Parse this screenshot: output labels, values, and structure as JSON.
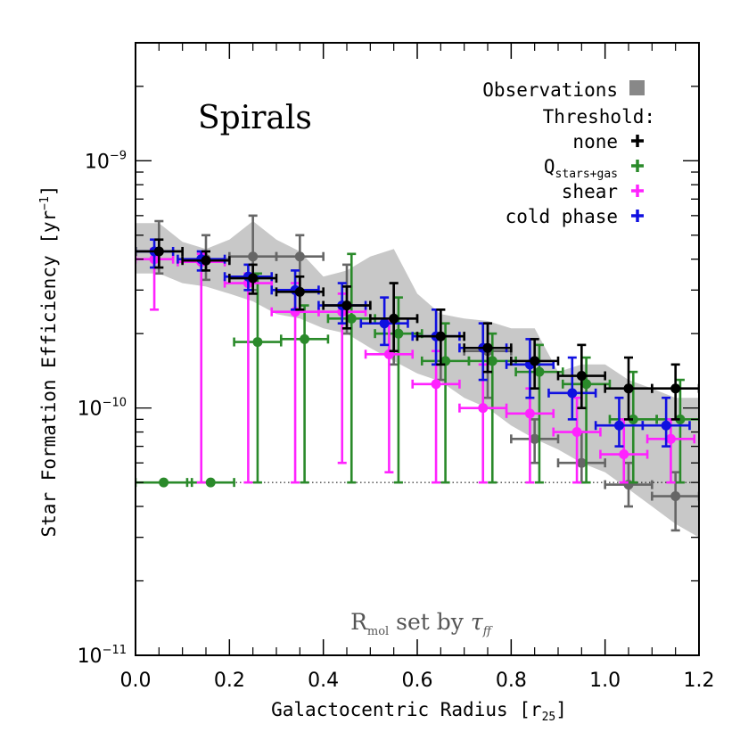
{
  "chart_data": {
    "type": "scatter",
    "title": "Spirals",
    "xlabel": "Galactocentric Radius [r25]",
    "xlabel_parts": {
      "main": "Galactocentric Radius [r",
      "sub": "25",
      "end": "]"
    },
    "ylabel": "Star Formation Efficiency [yr^-1]",
    "ylabel_parts": {
      "main": "Star Formation Efficiency [yr",
      "sup": "−1",
      "end": "]"
    },
    "x_scale": "linear",
    "y_scale": "log",
    "xlim": [
      0.0,
      1.2
    ],
    "ylim": [
      1e-11,
      3e-09
    ],
    "x_ticks": [
      0.0,
      0.2,
      0.4,
      0.6,
      0.8,
      1.0,
      1.2
    ],
    "x_tick_labels": [
      "0.0",
      "0.2",
      "0.4",
      "0.6",
      "0.8",
      "1.0",
      "1.2"
    ],
    "y_tick_labels": [
      {
        "value": 1e-09,
        "base": "10",
        "exp": "−9"
      },
      {
        "value": 1e-10,
        "base": "10",
        "exp": "−10"
      },
      {
        "value": 1e-11,
        "base": "10",
        "exp": "−11"
      }
    ],
    "annotation": {
      "R": "R",
      "sub": "mol",
      "rest": " set by ",
      "tau": "τ",
      "tau_sub": "ff"
    },
    "threshold_line": {
      "y": 5e-11,
      "x_range": [
        0.0,
        1.2
      ],
      "style": "dotted"
    },
    "legend": {
      "placement": "top-right",
      "observations_label": "Observations",
      "threshold_heading": "Threshold:",
      "entries": [
        {
          "label": "none",
          "color": "#000000"
        },
        {
          "label": "Q",
          "label_sub": "stars+gas",
          "color": "#2a8a2a"
        },
        {
          "label": "shear",
          "color": "#ff22ff"
        },
        {
          "label": "cold phase",
          "color": "#1010e0"
        }
      ]
    },
    "observations_band": {
      "color": "#c8c8c8",
      "x": [
        0.0,
        0.05,
        0.1,
        0.15,
        0.2,
        0.25,
        0.3,
        0.35,
        0.4,
        0.45,
        0.5,
        0.55,
        0.6,
        0.65,
        0.7,
        0.75,
        0.8,
        0.85,
        0.9,
        0.95,
        1.0,
        1.05,
        1.1,
        1.15,
        1.2
      ],
      "upper": [
        5.6e-10,
        5.6e-10,
        4.7e-10,
        4.4e-10,
        4.8e-10,
        5.7e-10,
        4.8e-10,
        4.3e-10,
        3.4e-10,
        3.6e-10,
        4.1e-10,
        4.4e-10,
        2.9e-10,
        2.4e-10,
        2.3e-10,
        2.25e-10,
        2.1e-10,
        2.1e-10,
        1.4e-10,
        1.5e-10,
        1.5e-10,
        1.3e-10,
        1.2e-10,
        1.1e-10,
        1.1e-10
      ],
      "lower": [
        3.5e-10,
        3.5e-10,
        3.2e-10,
        3.1e-10,
        2.9e-10,
        2.7e-10,
        2.4e-10,
        2.3e-10,
        2.1e-10,
        2e-10,
        1.75e-10,
        1.55e-10,
        1.38e-10,
        1.28e-10,
        1.1e-10,
        1e-10,
        8.5e-11,
        7.5e-11,
        6.8e-11,
        6e-11,
        5.5e-11,
        4.7e-11,
        4e-11,
        3.4e-11,
        3e-11
      ]
    },
    "series": [
      {
        "name": "Observations",
        "color": "#666666",
        "points": [
          {
            "x": 0.05,
            "y": 4.3e-10,
            "xerr": 0.05,
            "ylo": 3.5e-10,
            "yhi": 5.7e-10
          },
          {
            "x": 0.15,
            "y": 4e-10,
            "xerr": 0.05,
            "ylo": 3.3e-10,
            "yhi": 5e-10
          },
          {
            "x": 0.25,
            "y": 4.1e-10,
            "xerr": 0.05,
            "ylo": 3e-10,
            "yhi": 6e-10
          },
          {
            "x": 0.35,
            "y": 4.1e-10,
            "xerr": 0.05,
            "ylo": 3e-10,
            "yhi": 5e-10
          },
          {
            "x": 0.45,
            "y": 2.6e-10,
            "xerr": 0.05,
            "ylo": 2e-10,
            "yhi": 3.8e-10
          },
          {
            "x": 0.55,
            "y": 2.3e-10,
            "xerr": 0.05,
            "ylo": 1.5e-10,
            "yhi": 3.2e-10
          },
          {
            "x": 0.65,
            "y": 1.95e-10,
            "xerr": 0.05,
            "ylo": 1.3e-10,
            "yhi": 2.5e-10
          },
          {
            "x": 0.75,
            "y": 1.7e-10,
            "xerr": 0.05,
            "ylo": 1.1e-10,
            "yhi": 2.2e-10
          },
          {
            "x": 0.85,
            "y": 7.5e-11,
            "xerr": 0.05,
            "ylo": 6e-11,
            "yhi": 9e-11
          },
          {
            "x": 0.95,
            "y": 6e-11,
            "xerr": 0.05,
            "ylo": 5e-11,
            "yhi": 8e-11
          },
          {
            "x": 1.05,
            "y": 4.9e-11,
            "xerr": 0.05,
            "ylo": 4e-11,
            "yhi": 6e-11
          },
          {
            "x": 1.15,
            "y": 4.4e-11,
            "xerr": 0.05,
            "ylo": 3.2e-11,
            "yhi": 5.5e-11
          }
        ]
      },
      {
        "name": "Q_stars+gas",
        "color": "#2a8a2a",
        "points": [
          {
            "x": 0.06,
            "y": 5e-11,
            "xerr": 0.06,
            "ylo": 5e-11,
            "yhi": 5e-11
          },
          {
            "x": 0.16,
            "y": 5e-11,
            "xerr": 0.05,
            "ylo": 5e-11,
            "yhi": 5e-11
          },
          {
            "x": 0.26,
            "y": 1.85e-10,
            "xerr": 0.05,
            "ylo": 5e-11,
            "yhi": 3.5e-10
          },
          {
            "x": 0.36,
            "y": 1.9e-10,
            "xerr": 0.05,
            "ylo": 5e-11,
            "yhi": 2.6e-10
          },
          {
            "x": 0.46,
            "y": 2.3e-10,
            "xerr": 0.05,
            "ylo": 5e-11,
            "yhi": 4.2e-10
          },
          {
            "x": 0.56,
            "y": 2e-10,
            "xerr": 0.05,
            "ylo": 5e-11,
            "yhi": 2.8e-10
          },
          {
            "x": 0.66,
            "y": 1.55e-10,
            "xerr": 0.05,
            "ylo": 5e-11,
            "yhi": 2.2e-10
          },
          {
            "x": 0.76,
            "y": 1.55e-10,
            "xerr": 0.05,
            "ylo": 5e-11,
            "yhi": 2e-10
          },
          {
            "x": 0.86,
            "y": 1.4e-10,
            "xerr": 0.05,
            "ylo": 5e-11,
            "yhi": 1.8e-10
          },
          {
            "x": 0.96,
            "y": 1.25e-10,
            "xerr": 0.05,
            "ylo": 5e-11,
            "yhi": 1.6e-10
          },
          {
            "x": 1.06,
            "y": 9e-11,
            "xerr": 0.05,
            "ylo": 5e-11,
            "yhi": 1.4e-10
          },
          {
            "x": 1.16,
            "y": 9e-11,
            "xerr": 0.05,
            "ylo": 5e-11,
            "yhi": 1.3e-10
          }
        ]
      },
      {
        "name": "shear",
        "color": "#ff22ff",
        "points": [
          {
            "x": 0.04,
            "y": 4e-10,
            "xerr": 0.04,
            "ylo": 2.5e-10,
            "yhi": 4.4e-10
          },
          {
            "x": 0.14,
            "y": 3.9e-10,
            "xerr": 0.05,
            "ylo": 5e-11,
            "yhi": 4.2e-10
          },
          {
            "x": 0.24,
            "y": 3.2e-10,
            "xerr": 0.05,
            "ylo": 5e-11,
            "yhi": 3.5e-10
          },
          {
            "x": 0.34,
            "y": 2.45e-10,
            "xerr": 0.05,
            "ylo": 5e-11,
            "yhi": 3.2e-10
          },
          {
            "x": 0.44,
            "y": 2.45e-10,
            "xerr": 0.05,
            "ylo": 6e-11,
            "yhi": 2.9e-10
          },
          {
            "x": 0.54,
            "y": 1.65e-10,
            "xerr": 0.05,
            "ylo": 5.5e-11,
            "yhi": 2.3e-10
          },
          {
            "x": 0.64,
            "y": 1.25e-10,
            "xerr": 0.05,
            "ylo": 5e-11,
            "yhi": 1.7e-10
          },
          {
            "x": 0.74,
            "y": 1e-10,
            "xerr": 0.05,
            "ylo": 5e-11,
            "yhi": 1.5e-10
          },
          {
            "x": 0.84,
            "y": 9.5e-11,
            "xerr": 0.05,
            "ylo": 5e-11,
            "yhi": 1.2e-10
          },
          {
            "x": 0.94,
            "y": 8e-11,
            "xerr": 0.05,
            "ylo": 5e-11,
            "yhi": 1.1e-10
          },
          {
            "x": 1.04,
            "y": 6.5e-11,
            "xerr": 0.05,
            "ylo": 5e-11,
            "yhi": 9e-11
          },
          {
            "x": 1.14,
            "y": 7.5e-11,
            "xerr": 0.05,
            "ylo": 5e-11,
            "yhi": 9e-11
          }
        ]
      },
      {
        "name": "cold phase",
        "color": "#1010e0",
        "points": [
          {
            "x": 0.04,
            "y": 4.3e-10,
            "xerr": 0.04,
            "ylo": 3.7e-10,
            "yhi": 4.8e-10
          },
          {
            "x": 0.14,
            "y": 4e-10,
            "xerr": 0.05,
            "ylo": 3.6e-10,
            "yhi": 4.3e-10
          },
          {
            "x": 0.24,
            "y": 3.4e-10,
            "xerr": 0.05,
            "ylo": 3e-10,
            "yhi": 3.8e-10
          },
          {
            "x": 0.34,
            "y": 3e-10,
            "xerr": 0.05,
            "ylo": 2.5e-10,
            "yhi": 3.6e-10
          },
          {
            "x": 0.44,
            "y": 2.6e-10,
            "xerr": 0.05,
            "ylo": 2.2e-10,
            "yhi": 3.2e-10
          },
          {
            "x": 0.53,
            "y": 2.2e-10,
            "xerr": 0.05,
            "ylo": 1.8e-10,
            "yhi": 2.8e-10
          },
          {
            "x": 0.64,
            "y": 1.95e-10,
            "xerr": 0.05,
            "ylo": 1.5e-10,
            "yhi": 2.5e-10
          },
          {
            "x": 0.74,
            "y": 1.75e-10,
            "xerr": 0.05,
            "ylo": 1.3e-10,
            "yhi": 2.2e-10
          },
          {
            "x": 0.84,
            "y": 1.5e-10,
            "xerr": 0.05,
            "ylo": 1.1e-10,
            "yhi": 1.9e-10
          },
          {
            "x": 0.93,
            "y": 1.15e-10,
            "xerr": 0.05,
            "ylo": 9e-11,
            "yhi": 1.6e-10
          },
          {
            "x": 1.03,
            "y": 8.5e-11,
            "xerr": 0.05,
            "ylo": 7e-11,
            "yhi": 1.1e-10
          },
          {
            "x": 1.13,
            "y": 8.5e-11,
            "xerr": 0.05,
            "ylo": 7e-11,
            "yhi": 1.1e-10
          }
        ]
      },
      {
        "name": "none",
        "color": "#000000",
        "points": [
          {
            "x": 0.05,
            "y": 4.3e-10,
            "xerr": 0.05,
            "ylo": 3.7e-10,
            "yhi": 4.8e-10
          },
          {
            "x": 0.15,
            "y": 3.95e-10,
            "xerr": 0.05,
            "ylo": 3.6e-10,
            "yhi": 4.3e-10
          },
          {
            "x": 0.25,
            "y": 3.35e-10,
            "xerr": 0.05,
            "ylo": 2.9e-10,
            "yhi": 3.8e-10
          },
          {
            "x": 0.35,
            "y": 2.95e-10,
            "xerr": 0.05,
            "ylo": 2.5e-10,
            "yhi": 3.4e-10
          },
          {
            "x": 0.45,
            "y": 2.6e-10,
            "xerr": 0.05,
            "ylo": 2.1e-10,
            "yhi": 3.1e-10
          },
          {
            "x": 0.55,
            "y": 2.3e-10,
            "xerr": 0.05,
            "ylo": 1.7e-10,
            "yhi": 3.2e-10
          },
          {
            "x": 0.65,
            "y": 1.95e-10,
            "xerr": 0.05,
            "ylo": 1.5e-10,
            "yhi": 2.5e-10
          },
          {
            "x": 0.75,
            "y": 1.75e-10,
            "xerr": 0.05,
            "ylo": 1.4e-10,
            "yhi": 2.2e-10
          },
          {
            "x": 0.85,
            "y": 1.55e-10,
            "xerr": 0.05,
            "ylo": 1.2e-10,
            "yhi": 1.9e-10
          },
          {
            "x": 0.95,
            "y": 1.35e-10,
            "xerr": 0.05,
            "ylo": 1e-10,
            "yhi": 1.8e-10
          },
          {
            "x": 1.05,
            "y": 1.2e-10,
            "xerr": 0.05,
            "ylo": 9e-11,
            "yhi": 1.6e-10
          },
          {
            "x": 1.15,
            "y": 1.2e-10,
            "xerr": 0.05,
            "ylo": 9e-11,
            "yhi": 1.5e-10
          }
        ]
      }
    ]
  }
}
